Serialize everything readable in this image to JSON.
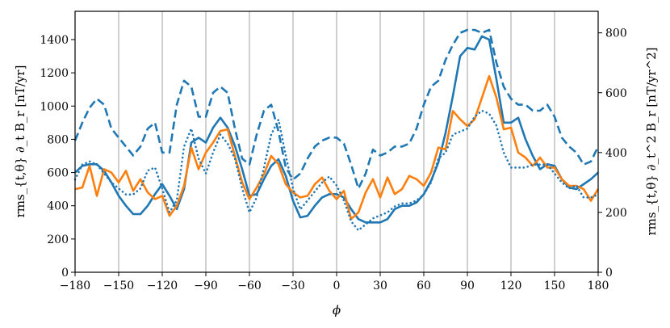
{
  "chart_data": {
    "type": "line",
    "title": "",
    "xlabel": "ϕ",
    "ylabel_left": "rms_{t,θ} ∂_t B_r [nT/yr]",
    "ylabel_right": "rms_{t,θ} ∂_t^2 B_r [nT/yr^2]",
    "xlim": [
      -180,
      180
    ],
    "ylim_left": [
      0,
      1570
    ],
    "ylim_right": [
      0,
      872
    ],
    "x_ticks": [
      -180,
      -150,
      -120,
      -90,
      -60,
      -30,
      0,
      30,
      60,
      90,
      120,
      150,
      180
    ],
    "x_tick_labels": [
      "−180",
      "−150",
      "−120",
      "−90",
      "−60",
      "−30",
      "0",
      "30",
      "60",
      "90",
      "120",
      "150",
      "180"
    ],
    "y_ticks_left": [
      0,
      200,
      400,
      600,
      800,
      1000,
      1200,
      1400
    ],
    "y_ticks_right": [
      0,
      200,
      400,
      600,
      800
    ],
    "grid": "vertical",
    "series": [
      {
        "axis": "left",
        "style": "solid",
        "color": "#1f77b4",
        "x": [
          -180,
          -175,
          -170,
          -165,
          -160,
          -155,
          -150,
          -145,
          -140,
          -135,
          -130,
          -125,
          -120,
          -115,
          -110,
          -105,
          -100,
          -95,
          -90,
          -85,
          -80,
          -75,
          -70,
          -65,
          -60,
          -55,
          -50,
          -45,
          -40,
          -35,
          -30,
          -25,
          -20,
          -15,
          -10,
          -5,
          0,
          5,
          10,
          15,
          20,
          25,
          30,
          35,
          40,
          45,
          50,
          55,
          60,
          65,
          70,
          75,
          80,
          85,
          90,
          95,
          100,
          105,
          110,
          115,
          120,
          125,
          130,
          135,
          140,
          145,
          150,
          155,
          160,
          165,
          170,
          175,
          180
        ],
        "y": [
          600,
          640,
          650,
          650,
          610,
          540,
          460,
          400,
          350,
          350,
          400,
          470,
          530,
          460,
          380,
          500,
          780,
          810,
          780,
          870,
          930,
          870,
          760,
          620,
          460,
          470,
          560,
          640,
          680,
          580,
          430,
          330,
          340,
          400,
          450,
          470,
          470,
          450,
          380,
          320,
          300,
          300,
          300,
          320,
          380,
          400,
          400,
          420,
          470,
          550,
          660,
          840,
          1060,
          1300,
          1350,
          1340,
          1420,
          1400,
          1160,
          900,
          900,
          930,
          800,
          700,
          620,
          650,
          640,
          560,
          510,
          500,
          530,
          560,
          600
        ]
      },
      {
        "axis": "left",
        "style": "solid",
        "color": "#ff7f0e",
        "x": [
          -180,
          -175,
          -170,
          -165,
          -160,
          -155,
          -150,
          -145,
          -140,
          -135,
          -130,
          -125,
          -120,
          -115,
          -110,
          -105,
          -100,
          -95,
          -90,
          -85,
          -80,
          -75,
          -70,
          -65,
          -60,
          -55,
          -50,
          -45,
          -40,
          -35,
          -30,
          -25,
          -20,
          -15,
          -10,
          -5,
          0,
          5,
          10,
          15,
          20,
          25,
          30,
          35,
          40,
          45,
          50,
          55,
          60,
          65,
          70,
          75,
          80,
          85,
          90,
          95,
          100,
          105,
          110,
          115,
          120,
          125,
          130,
          135,
          140,
          145,
          150,
          155,
          160,
          165,
          170,
          175,
          180
        ],
        "y": [
          500,
          510,
          640,
          460,
          620,
          600,
          540,
          610,
          490,
          560,
          480,
          440,
          460,
          340,
          400,
          520,
          750,
          620,
          720,
          780,
          850,
          860,
          700,
          540,
          440,
          510,
          590,
          700,
          650,
          530,
          480,
          450,
          460,
          530,
          570,
          490,
          440,
          490,
          320,
          360,
          480,
          560,
          450,
          570,
          470,
          500,
          580,
          560,
          520,
          600,
          750,
          740,
          970,
          920,
          880,
          920,
          1050,
          1180,
          1050,
          860,
          870,
          720,
          690,
          640,
          690,
          630,
          630,
          560,
          520,
          520,
          500,
          430,
          500
        ]
      },
      {
        "axis": "right",
        "style": "dashed",
        "color": "#1f77b4",
        "x": [
          -180,
          -175,
          -170,
          -165,
          -160,
          -155,
          -150,
          -145,
          -140,
          -135,
          -130,
          -125,
          -120,
          -115,
          -110,
          -105,
          -100,
          -95,
          -90,
          -85,
          -80,
          -75,
          -70,
          -65,
          -60,
          -55,
          -50,
          -45,
          -40,
          -35,
          -30,
          -25,
          -20,
          -15,
          -10,
          -5,
          0,
          5,
          10,
          15,
          20,
          25,
          30,
          35,
          40,
          45,
          50,
          55,
          60,
          65,
          70,
          75,
          80,
          85,
          90,
          95,
          100,
          105,
          110,
          115,
          120,
          125,
          130,
          135,
          140,
          145,
          150,
          155,
          160,
          165,
          170,
          175,
          180
        ],
        "y": [
          440,
          500,
          550,
          580,
          560,
          480,
          450,
          420,
          390,
          420,
          480,
          500,
          400,
          400,
          560,
          640,
          620,
          520,
          520,
          600,
          620,
          600,
          480,
          380,
          360,
          460,
          540,
          560,
          470,
          350,
          310,
          330,
          380,
          420,
          440,
          450,
          450,
          430,
          360,
          280,
          330,
          410,
          390,
          400,
          420,
          420,
          430,
          480,
          560,
          620,
          640,
          710,
          760,
          800,
          810,
          810,
          800,
          810,
          700,
          620,
          580,
          560,
          560,
          540,
          540,
          560,
          520,
          450,
          420,
          400,
          360,
          370,
          420
        ]
      },
      {
        "axis": "right",
        "style": "dotted",
        "color": "#1f77b4",
        "x": [
          -180,
          -175,
          -170,
          -165,
          -160,
          -155,
          -150,
          -145,
          -140,
          -135,
          -130,
          -125,
          -120,
          -115,
          -110,
          -105,
          -100,
          -95,
          -90,
          -85,
          -80,
          -75,
          -70,
          -65,
          -60,
          -55,
          -50,
          -45,
          -40,
          -35,
          -30,
          -25,
          -20,
          -15,
          -10,
          -5,
          0,
          5,
          10,
          15,
          20,
          25,
          30,
          35,
          40,
          45,
          50,
          55,
          60,
          65,
          70,
          75,
          80,
          85,
          90,
          95,
          100,
          105,
          110,
          115,
          120,
          125,
          130,
          135,
          140,
          145,
          150,
          155,
          160,
          165,
          170,
          175,
          180
        ],
        "y": [
          310,
          360,
          370,
          360,
          330,
          300,
          280,
          260,
          260,
          280,
          340,
          350,
          280,
          200,
          240,
          420,
          480,
          380,
          330,
          400,
          460,
          430,
          380,
          280,
          200,
          250,
          350,
          460,
          510,
          390,
          280,
          210,
          240,
          270,
          300,
          320,
          290,
          240,
          170,
          140,
          160,
          180,
          190,
          200,
          220,
          230,
          230,
          240,
          260,
          300,
          380,
          400,
          460,
          470,
          480,
          520,
          540,
          530,
          490,
          400,
          350,
          350,
          350,
          360,
          360,
          360,
          330,
          300,
          280,
          290,
          250,
          250,
          260
        ]
      }
    ]
  }
}
